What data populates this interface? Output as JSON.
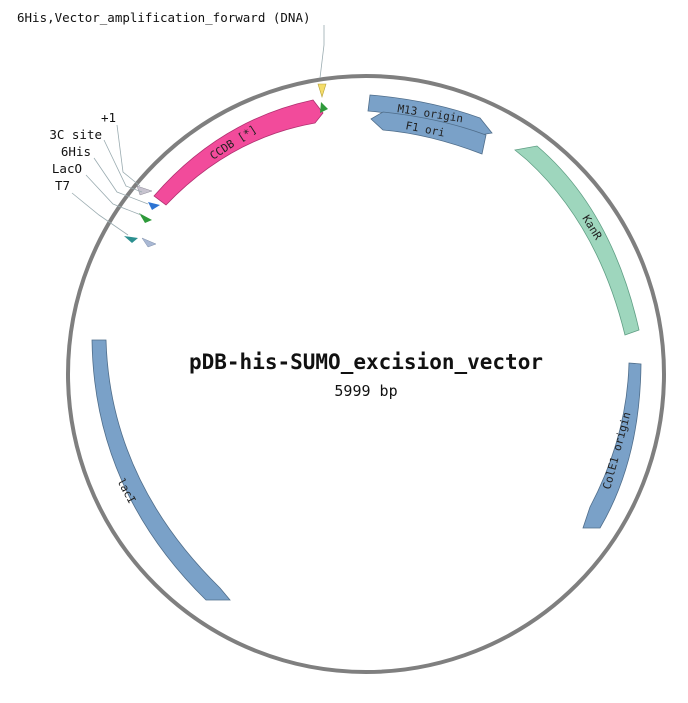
{
  "map": {
    "name": "pDB-his-SUMO_excision_vector",
    "length_label": "5999 bp",
    "backbone_color": "#7f7f7f"
  },
  "features": [
    {
      "name": "M13 origin",
      "color": "#7aa1c8",
      "shape": "arrow-cw",
      "show_label": true
    },
    {
      "name": "F1 ori",
      "color": "#7aa1c8",
      "shape": "arrow-ccw",
      "show_label": true
    },
    {
      "name": "KanR",
      "color": "#9ed6bd",
      "shape": "arrow-ccw",
      "show_label": true
    },
    {
      "name": "ColE1 origin",
      "color": "#7aa1c8",
      "shape": "arrow-ccw",
      "show_label": true
    },
    {
      "name": "lacI",
      "color": "#7aa1c8",
      "shape": "arrow-cw",
      "show_label": true
    },
    {
      "name": "CCDB [*]",
      "color": "#f24b9b",
      "shape": "arrow-cw",
      "show_label": true
    }
  ],
  "markers": [
    {
      "name": "6His,Vector_amplification_forward (DNA)",
      "color": "#f5dd6a"
    },
    {
      "name": "+1",
      "color": "#2e9a3a"
    },
    {
      "name": "3C site",
      "color": "#c7c3cf"
    },
    {
      "name": "6His",
      "color": "#2d74d3"
    },
    {
      "name": "LacO",
      "color": "#2e9a3a"
    },
    {
      "name": "T7",
      "color": "#2b8f8f"
    },
    {
      "name": "",
      "color": "#a9b8d4"
    }
  ]
}
